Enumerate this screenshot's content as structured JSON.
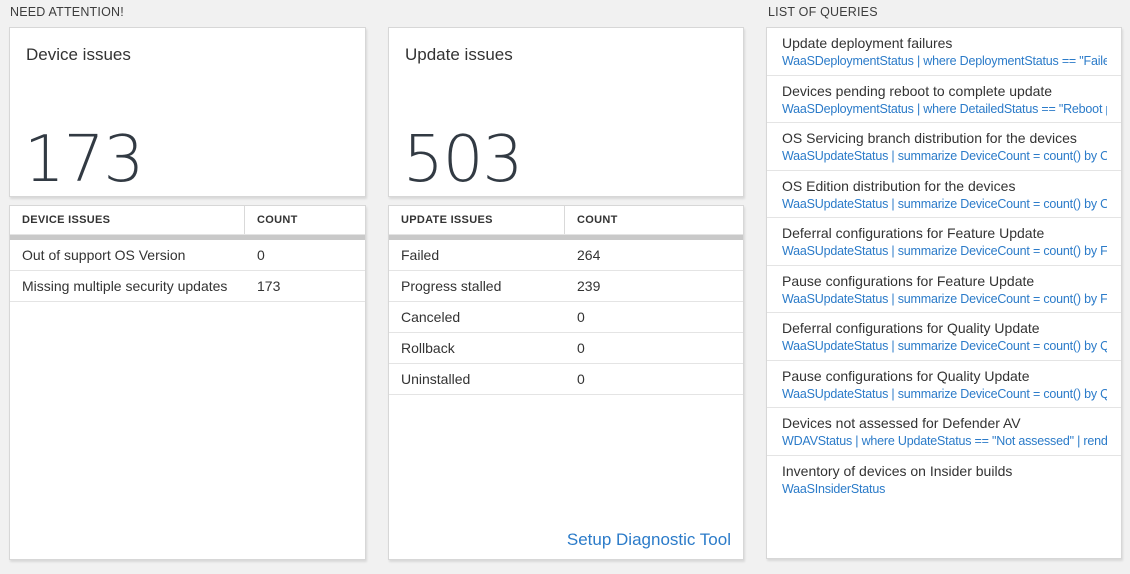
{
  "colors": {
    "page_bg": "#f1f1f1",
    "card_bg": "#ffffff",
    "card_border": "#d7d7d7",
    "accent_blue": "#2b7bc9",
    "big_number_color": "#323a43",
    "scrollbar_gray": "#c9c9c9",
    "text_dark": "#333333"
  },
  "need_attention": {
    "header": "NEED ATTENTION!",
    "device_card": {
      "title": "Device issues",
      "count": "173"
    },
    "device_table": {
      "columns": [
        "DEVICE ISSUES",
        "COUNT"
      ],
      "rows": [
        {
          "label": "Out of support OS Version",
          "count": "0"
        },
        {
          "label": "Missing multiple security updates",
          "count": "173"
        }
      ]
    },
    "update_card": {
      "title": "Update issues",
      "count": "503"
    },
    "update_table": {
      "columns": [
        "UPDATE ISSUES",
        "COUNT"
      ],
      "rows": [
        {
          "label": "Failed",
          "count": "264"
        },
        {
          "label": "Progress stalled",
          "count": "239"
        },
        {
          "label": "Canceled",
          "count": "0"
        },
        {
          "label": "Rollback",
          "count": "0"
        },
        {
          "label": "Uninstalled",
          "count": "0"
        }
      ],
      "footer_link": "Setup Diagnostic Tool"
    }
  },
  "queries": {
    "header": "LIST OF QUERIES",
    "items": [
      {
        "title": "Update deployment failures",
        "query": "WaaSDeploymentStatus | where DeploymentStatus == \"Failed\" |..."
      },
      {
        "title": "Devices pending reboot to complete update",
        "query": "WaaSDeploymentStatus | where DetailedStatus == \"Reboot pend..."
      },
      {
        "title": "OS Servicing branch distribution for the devices",
        "query": "WaaSUpdateStatus | summarize DeviceCount = count() by OSSer..."
      },
      {
        "title": "OS Edition distribution for the devices",
        "query": "WaaSUpdateStatus | summarize DeviceCount = count() by OSEdit..."
      },
      {
        "title": "Deferral configurations for Feature Update",
        "query": "WaaSUpdateStatus | summarize DeviceCount = count() by Featur..."
      },
      {
        "title": "Pause configurations for Feature Update",
        "query": "WaaSUpdateStatus | summarize DeviceCount = count() by Featur..."
      },
      {
        "title": "Deferral configurations for Quality Update",
        "query": "WaaSUpdateStatus | summarize DeviceCount = count() by Qualit..."
      },
      {
        "title": "Pause configurations for Quality Update",
        "query": "WaaSUpdateStatus | summarize DeviceCount = count() by Qualit..."
      },
      {
        "title": "Devices not assessed for Defender AV",
        "query": "WDAVStatus | where UpdateStatus == \"Not assessed\" | render ta..."
      },
      {
        "title": "Inventory of devices on Insider builds",
        "query": "WaaSInsiderStatus"
      }
    ]
  }
}
